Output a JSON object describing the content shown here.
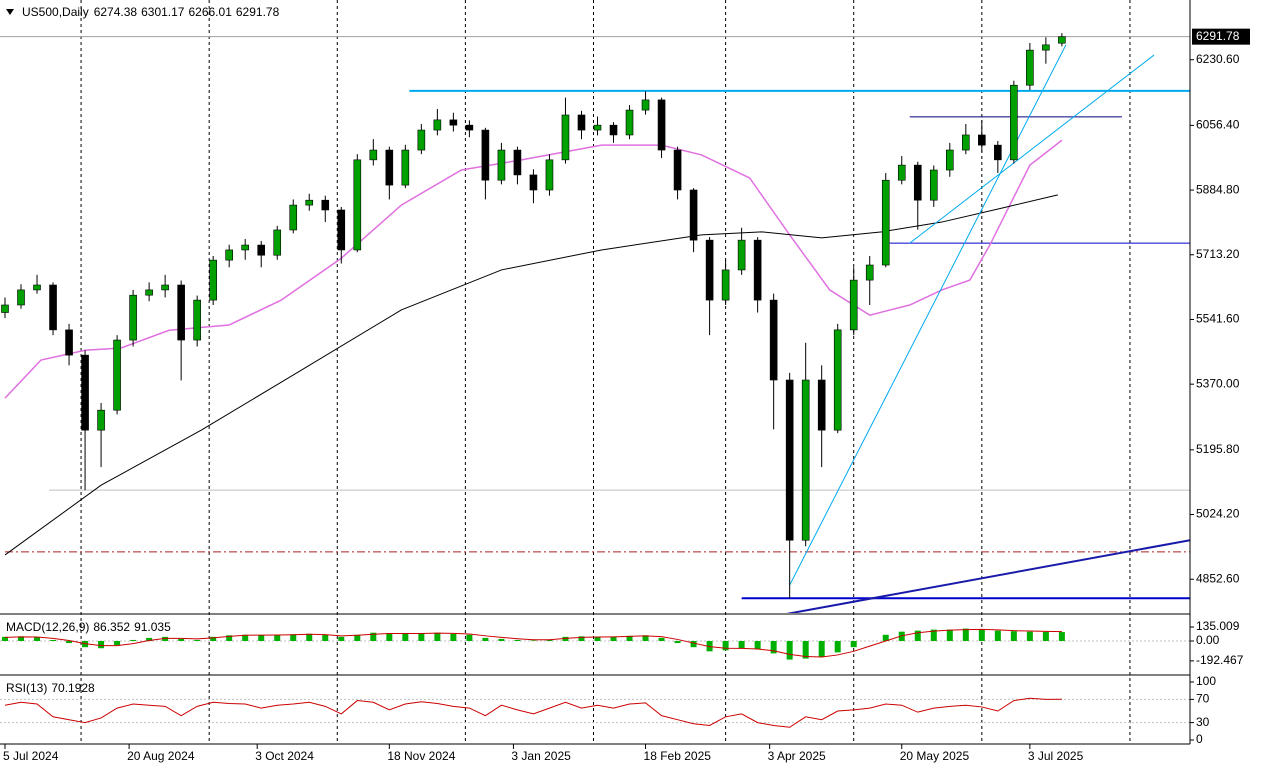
{
  "chart_data": {
    "type": "candlestick",
    "title": "US500,Daily",
    "xlim": [
      0,
      296
    ],
    "ylim": [
      4763,
      6389
    ],
    "x": [
      0,
      4,
      8,
      12,
      16,
      20,
      24,
      28,
      32,
      36,
      40,
      44,
      48,
      52,
      56,
      60,
      64,
      68,
      72,
      76,
      80,
      84,
      88,
      92,
      96,
      100,
      104,
      108,
      112,
      116,
      120,
      124,
      128,
      132,
      136,
      140,
      144,
      148,
      152,
      156,
      160,
      164,
      168,
      172,
      176,
      180,
      184,
      188,
      192,
      196,
      200,
      204,
      208,
      212,
      216,
      220,
      224,
      228,
      232,
      236,
      240,
      244,
      248,
      252,
      256,
      260,
      264
    ],
    "candles": [
      [
        5560,
        5600,
        5545,
        5580
      ],
      [
        5580,
        5635,
        5570,
        5620
      ],
      [
        5620,
        5660,
        5610,
        5633
      ],
      [
        5633,
        5640,
        5500,
        5514
      ],
      [
        5514,
        5530,
        5420,
        5447
      ],
      [
        5447,
        5460,
        5089,
        5248
      ],
      [
        5248,
        5320,
        5150,
        5301
      ],
      [
        5301,
        5500,
        5290,
        5487
      ],
      [
        5487,
        5620,
        5470,
        5606
      ],
      [
        5606,
        5640,
        5590,
        5620
      ],
      [
        5620,
        5660,
        5600,
        5633
      ],
      [
        5633,
        5645,
        5380,
        5487
      ],
      [
        5487,
        5605,
        5470,
        5593
      ],
      [
        5593,
        5710,
        5580,
        5699
      ],
      [
        5699,
        5740,
        5680,
        5726
      ],
      [
        5726,
        5755,
        5700,
        5739
      ],
      [
        5739,
        5750,
        5680,
        5712
      ],
      [
        5712,
        5790,
        5700,
        5779
      ],
      [
        5779,
        5860,
        5770,
        5845
      ],
      [
        5845,
        5875,
        5830,
        5858
      ],
      [
        5858,
        5870,
        5800,
        5832
      ],
      [
        5832,
        5840,
        5690,
        5726
      ],
      [
        5726,
        5980,
        5720,
        5965
      ],
      [
        5965,
        6020,
        5950,
        5991
      ],
      [
        5991,
        6000,
        5860,
        5898
      ],
      [
        5898,
        6005,
        5890,
        5991
      ],
      [
        5991,
        6060,
        5980,
        6044
      ],
      [
        6044,
        6100,
        6030,
        6071
      ],
      [
        6071,
        6090,
        6040,
        6057
      ],
      [
        6057,
        6070,
        6025,
        6044
      ],
      [
        6044,
        6050,
        5860,
        5911
      ],
      [
        5911,
        6010,
        5900,
        5991
      ],
      [
        5991,
        6000,
        5900,
        5925
      ],
      [
        5925,
        5940,
        5850,
        5885
      ],
      [
        5885,
        5980,
        5870,
        5965
      ],
      [
        5965,
        6130,
        5955,
        6084
      ],
      [
        6084,
        6095,
        6020,
        6044
      ],
      [
        6044,
        6080,
        6030,
        6057
      ],
      [
        6057,
        6065,
        6010,
        6031
      ],
      [
        6031,
        6110,
        6020,
        6097
      ],
      [
        6097,
        6147,
        6085,
        6124
      ],
      [
        6124,
        6130,
        5970,
        5991
      ],
      [
        5991,
        6000,
        5860,
        5885
      ],
      [
        5885,
        5890,
        5720,
        5752
      ],
      [
        5752,
        5760,
        5500,
        5593
      ],
      [
        5593,
        5700,
        5580,
        5673
      ],
      [
        5673,
        5785,
        5660,
        5752
      ],
      [
        5752,
        5760,
        5560,
        5593
      ],
      [
        5593,
        5610,
        5250,
        5381
      ],
      [
        5381,
        5400,
        4802,
        4956
      ],
      [
        4956,
        5480,
        4940,
        5381
      ],
      [
        5381,
        5420,
        5150,
        5248
      ],
      [
        5248,
        5530,
        5240,
        5514
      ],
      [
        5514,
        5680,
        5500,
        5646
      ],
      [
        5646,
        5710,
        5580,
        5686
      ],
      [
        5686,
        5930,
        5680,
        5911
      ],
      [
        5911,
        5975,
        5900,
        5951
      ],
      [
        5951,
        5960,
        5780,
        5858
      ],
      [
        5858,
        5950,
        5840,
        5938
      ],
      [
        5938,
        6010,
        5920,
        5991
      ],
      [
        5991,
        6060,
        5980,
        6031
      ],
      [
        6031,
        6070,
        5985,
        6004
      ],
      [
        6004,
        6015,
        5930,
        5965
      ],
      [
        5965,
        6175,
        5955,
        6163
      ],
      [
        6163,
        6275,
        6150,
        6256
      ],
      [
        6256,
        6290,
        6220,
        6270
      ],
      [
        6274.38,
        6301.17,
        6266.01,
        6291.78
      ]
    ],
    "bull_color": "#00a000",
    "bear_color": "#000000",
    "yticks": [
      {
        "value": 6230.6,
        "label": "6230.60"
      },
      {
        "value": 6056.4,
        "label": "6056.40"
      },
      {
        "value": 5884.8,
        "label": "5884.80"
      },
      {
        "value": 5713.2,
        "label": "5713.20"
      },
      {
        "value": 5541.6,
        "label": "5541.60"
      },
      {
        "value": 5370,
        "label": "5370.00"
      },
      {
        "value": 5195.8,
        "label": "5195.80"
      },
      {
        "value": 5024.2,
        "label": "5024.20"
      },
      {
        "value": 4852.6,
        "label": "4852.60"
      }
    ],
    "xticks": [
      {
        "value": 0,
        "label": "5 Jul 2024"
      },
      {
        "value": 31,
        "label": "20 Aug 2024"
      },
      {
        "value": 63,
        "label": "3 Oct 2024"
      },
      {
        "value": 96,
        "label": "18 Nov 2024"
      },
      {
        "value": 127,
        "label": "3 Jan 2025"
      },
      {
        "value": 160,
        "label": "18 Feb 2025"
      },
      {
        "value": 191,
        "label": "3 Apr 2025"
      },
      {
        "value": 224,
        "label": "20 May 2025"
      },
      {
        "value": 256,
        "label": "3 Jul 2025"
      }
    ],
    "xgrid": [
      19,
      51,
      83,
      115,
      147,
      180,
      212,
      244,
      281
    ],
    "lines": [
      {
        "color": "#e070e0",
        "x": [
          0,
          9,
          20,
          29,
          41,
          56,
          69,
          84,
          99,
          114,
          129,
          149,
          164,
          174,
          186,
          196,
          206,
          216,
          226,
          234,
          241,
          246,
          251,
          256,
          264
        ],
        "values": [
          5333,
          5434,
          5460,
          5466,
          5513,
          5527,
          5593,
          5704,
          5845,
          5938,
          5965,
          6004,
          6004,
          5978,
          5917,
          5766,
          5620,
          5553,
          5580,
          5620,
          5646,
          5739,
          5845,
          5951,
          6017
        ]
      },
      {
        "color": "#000000",
        "x": [
          0,
          24,
          49,
          74,
          99,
          124,
          149,
          174,
          189,
          204,
          219,
          234,
          249,
          263
        ],
        "values": [
          4917,
          5102,
          5248,
          5407,
          5567,
          5673,
          5726,
          5766,
          5774,
          5758,
          5774,
          5800,
          5837,
          5872
        ]
      }
    ],
    "hlines": [
      {
        "value": 6148,
        "from": 101,
        "to": 296,
        "color": "#00aaee",
        "width": 2,
        "style": "solid"
      },
      {
        "value": 6079,
        "from": 226,
        "to": 279,
        "color": "#000080",
        "width": 1,
        "style": "solid"
      },
      {
        "value": 5744,
        "from": 221,
        "to": 296,
        "color": "#0000cd",
        "width": 1,
        "style": "solid"
      },
      {
        "value": 5089,
        "from": 11,
        "to": 296,
        "color": "#c0c0c0",
        "width": 1,
        "style": "solid"
      },
      {
        "value": 4925,
        "from": 0,
        "to": 296,
        "color": "#b22222",
        "width": 1,
        "style": "dashdot"
      },
      {
        "value": 4802,
        "from": 184,
        "to": 296,
        "color": "#0000cd",
        "width": 2,
        "style": "solid"
      }
    ],
    "trendlines": [
      {
        "x": [
          195,
          296
        ],
        "values": [
          4760,
          4956
        ],
        "color": "#1a1aaa",
        "width": 2
      },
      {
        "x": [
          196,
          265
        ],
        "values": [
          4837,
          6270
        ],
        "color": "#00aaee",
        "width": 1
      },
      {
        "x": [
          226,
          287
        ],
        "values": [
          5744,
          6243
        ],
        "color": "#00aaee",
        "width": 1
      }
    ],
    "macd": {
      "title": "MACD(12,26,9)",
      "ylim": [
        -300,
        232
      ],
      "yticks": [
        135.009,
        {
          "value": 0,
          "label": "0.00"
        },
        -192.467
      ],
      "hist_color": "#00b000",
      "signal_color": "#cc0000",
      "histogram": [
        40,
        45,
        35,
        10,
        -20,
        -60,
        -70,
        -40,
        10,
        30,
        40,
        20,
        10,
        40,
        55,
        60,
        55,
        60,
        65,
        70,
        60,
        40,
        60,
        80,
        75,
        70,
        75,
        80,
        70,
        60,
        30,
        20,
        10,
        5,
        15,
        40,
        45,
        40,
        40,
        50,
        55,
        30,
        -20,
        -60,
        -100,
        -90,
        -70,
        -80,
        -120,
        -180,
        -170,
        -150,
        -110,
        -60,
        0,
        60,
        90,
        100,
        110,
        110,
        120,
        115,
        100,
        95,
        90,
        88,
        86.352
      ],
      "signal": [
        35,
        40,
        38,
        25,
        5,
        -25,
        -45,
        -45,
        -25,
        5,
        25,
        25,
        20,
        30,
        45,
        55,
        57,
        58,
        60,
        65,
        62,
        50,
        55,
        65,
        72,
        72,
        73,
        76,
        74,
        68,
        50,
        35,
        22,
        12,
        12,
        25,
        35,
        38,
        40,
        45,
        50,
        42,
        15,
        -20,
        -55,
        -70,
        -72,
        -78,
        -95,
        -130,
        -150,
        -155,
        -135,
        -100,
        -50,
        0,
        50,
        80,
        95,
        105,
        110,
        112,
        108,
        100,
        96,
        93,
        91.035
      ]
    },
    "rsi": {
      "title": "RSI(13)",
      "ylim": [
        0,
        100
      ],
      "yticks": [
        100,
        70,
        30,
        0
      ],
      "levels": [
        70,
        30
      ],
      "color": "#cc0000",
      "values": [
        60,
        65,
        62,
        40,
        35,
        30,
        38,
        55,
        62,
        60,
        58,
        42,
        58,
        65,
        63,
        62,
        55,
        60,
        62,
        65,
        58,
        45,
        68,
        65,
        52,
        62,
        66,
        63,
        58,
        55,
        42,
        60,
        52,
        45,
        55,
        65,
        55,
        60,
        55,
        62,
        64,
        42,
        35,
        28,
        25,
        40,
        45,
        30,
        25,
        22,
        40,
        35,
        50,
        52,
        55,
        62,
        60,
        48,
        55,
        58,
        60,
        57,
        50,
        68,
        72,
        70,
        70.1928
      ]
    }
  }
}
